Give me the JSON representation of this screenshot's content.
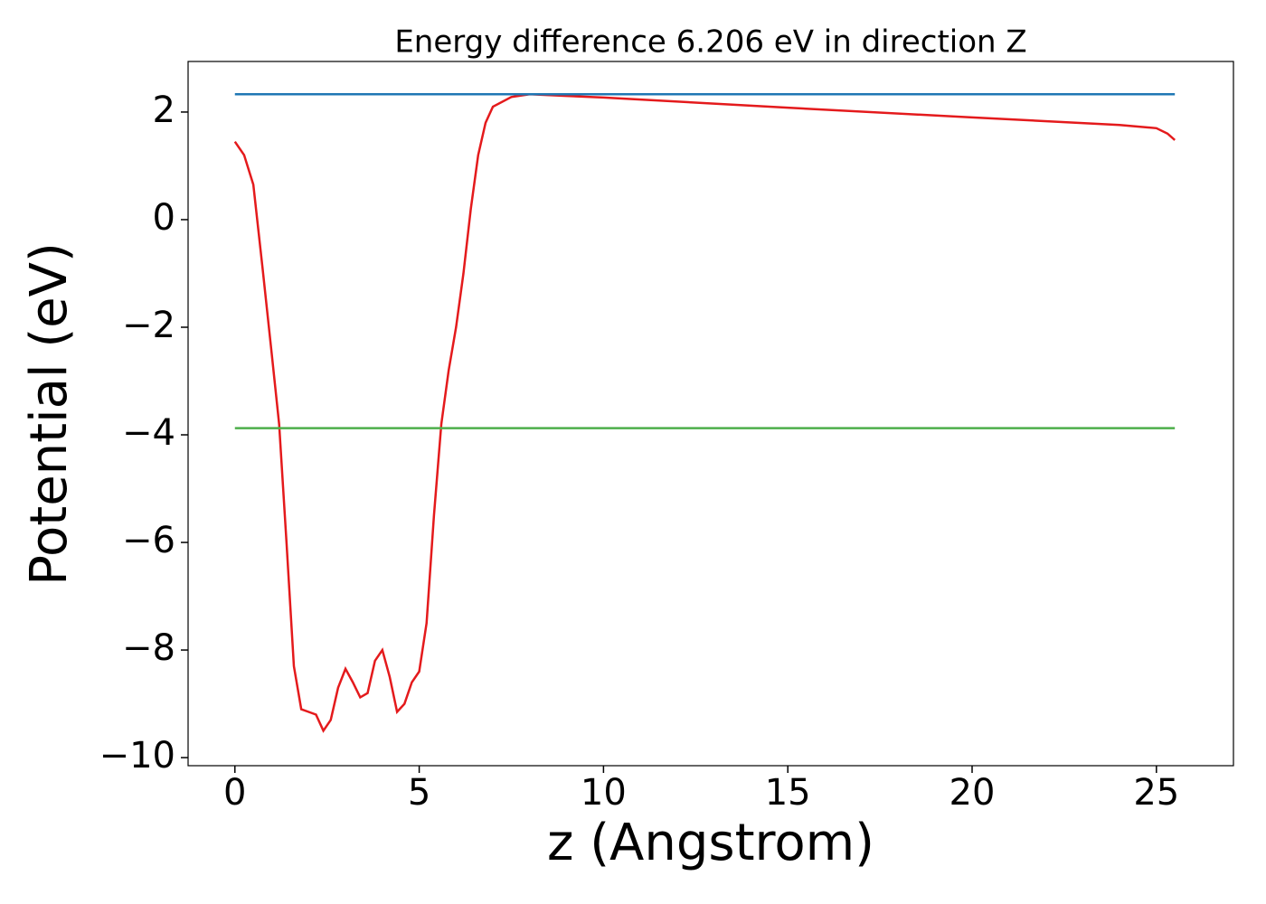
{
  "chart_data": {
    "type": "line",
    "title": "Energy difference 6.206 eV in direction Z",
    "x_label": "z (Angstrom)",
    "y_label": "Potential (eV)",
    "xlim": [
      -1.27,
      27.09
    ],
    "ylim": [
      -10.15,
      2.94
    ],
    "xticks": [
      0,
      5,
      10,
      15,
      20,
      25
    ],
    "yticks": [
      {
        "value": -10,
        "label": "−10"
      },
      {
        "value": -8,
        "label": "−8"
      },
      {
        "value": -6,
        "label": "−6"
      },
      {
        "value": -4,
        "label": "−4"
      },
      {
        "value": -2,
        "label": "−2"
      },
      0,
      2
    ],
    "series": [
      {
        "color": "#e41a1c",
        "x": [
          0,
          0.25,
          0.5,
          0.75,
          1.0,
          1.2,
          1.4,
          1.6,
          1.8,
          2.0,
          2.2,
          2.4,
          2.6,
          2.8,
          3.0,
          3.2,
          3.4,
          3.6,
          3.8,
          4.0,
          4.2,
          4.4,
          4.6,
          4.8,
          5.0,
          5.2,
          5.4,
          5.6,
          5.8,
          6.0,
          6.2,
          6.4,
          6.6,
          6.8,
          7.0,
          7.5,
          8.0,
          9.0,
          10,
          15,
          20,
          24,
          25,
          25.3,
          25.5
        ],
        "values": [
          1.45,
          1.2,
          0.65,
          -0.9,
          -2.5,
          -3.8,
          -6.0,
          -8.3,
          -9.1,
          -9.15,
          -9.2,
          -9.5,
          -9.3,
          -8.7,
          -8.35,
          -8.6,
          -8.88,
          -8.8,
          -8.2,
          -8.0,
          -8.5,
          -9.15,
          -9.0,
          -8.6,
          -8.4,
          -7.5,
          -5.5,
          -3.8,
          -2.8,
          -2.0,
          -1.0,
          0.2,
          1.2,
          1.8,
          2.1,
          2.28,
          2.33,
          2.3,
          2.27,
          2.08,
          1.9,
          1.76,
          1.7,
          1.6,
          1.48
        ]
      },
      {
        "color": "#1f77b4",
        "x": [
          0,
          25.5
        ],
        "values": [
          2.33,
          2.33
        ]
      },
      {
        "color": "#4daf4a",
        "x": [
          0,
          25.5
        ],
        "values": [
          -3.876,
          -3.876
        ]
      }
    ]
  }
}
